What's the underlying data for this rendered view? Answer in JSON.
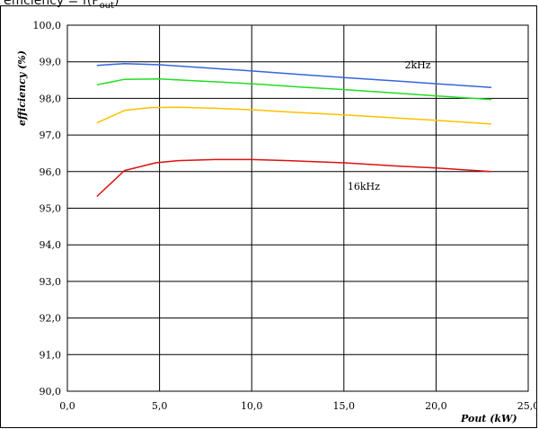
{
  "header": {
    "title_prefix": "efficiency = f(P",
    "title_sub": "out",
    "title_suffix": ")"
  },
  "chart_data": {
    "type": "line",
    "xlabel": "Pout (kW)",
    "ylabel": "efficiency (%)",
    "xlim": [
      0,
      25
    ],
    "ylim": [
      90,
      100
    ],
    "x_ticks": [
      0,
      5,
      10,
      15,
      20,
      25
    ],
    "x_tick_labels": [
      "0,0",
      "5,0",
      "10,0",
      "15,0",
      "20,0",
      "25,0"
    ],
    "y_ticks": [
      90,
      91,
      92,
      93,
      94,
      95,
      96,
      97,
      98,
      99,
      100
    ],
    "y_tick_labels": [
      "90,0",
      "91,0",
      "92,0",
      "93,0",
      "94,0",
      "95,0",
      "96,0",
      "97,0",
      "98,0",
      "99,0",
      "100,0"
    ],
    "grid": true,
    "series": [
      {
        "color": "#3366dd",
        "points": [
          [
            1.6,
            98.9
          ],
          [
            3.1,
            98.95
          ],
          [
            5.0,
            98.92
          ],
          [
            7.0,
            98.85
          ],
          [
            10.0,
            98.75
          ],
          [
            13.0,
            98.64
          ],
          [
            15.0,
            98.57
          ],
          [
            18.0,
            98.47
          ],
          [
            20.0,
            98.4
          ],
          [
            23.0,
            98.3
          ]
        ]
      },
      {
        "color": "#22dd22",
        "points": [
          [
            1.6,
            98.37
          ],
          [
            3.1,
            98.52
          ],
          [
            5.0,
            98.53
          ],
          [
            7.0,
            98.48
          ],
          [
            10.0,
            98.4
          ],
          [
            13.0,
            98.3
          ],
          [
            15.0,
            98.24
          ],
          [
            18.0,
            98.14
          ],
          [
            20.0,
            98.07
          ],
          [
            23.0,
            97.97
          ]
        ]
      },
      {
        "color": "#ffc000",
        "points": [
          [
            1.6,
            97.33
          ],
          [
            3.1,
            97.67
          ],
          [
            4.5,
            97.75
          ],
          [
            6.0,
            97.76
          ],
          [
            8.0,
            97.73
          ],
          [
            10.0,
            97.69
          ],
          [
            12.0,
            97.63
          ],
          [
            15.0,
            97.55
          ],
          [
            18.0,
            97.46
          ],
          [
            20.0,
            97.4
          ],
          [
            23.0,
            97.3
          ]
        ]
      },
      {
        "color": "#dd1111",
        "points": [
          [
            1.6,
            95.32
          ],
          [
            3.1,
            96.03
          ],
          [
            4.8,
            96.24
          ],
          [
            6.0,
            96.3
          ],
          [
            8.0,
            96.33
          ],
          [
            10.0,
            96.33
          ],
          [
            12.0,
            96.3
          ],
          [
            15.0,
            96.24
          ],
          [
            18.0,
            96.15
          ],
          [
            20.0,
            96.1
          ],
          [
            23.0,
            96.0
          ]
        ]
      }
    ],
    "annotations": [
      {
        "text": "2kHz",
        "x": 18.3,
        "y": 98.92
      },
      {
        "text": "16kHz",
        "x": 15.2,
        "y": 95.6
      }
    ]
  }
}
